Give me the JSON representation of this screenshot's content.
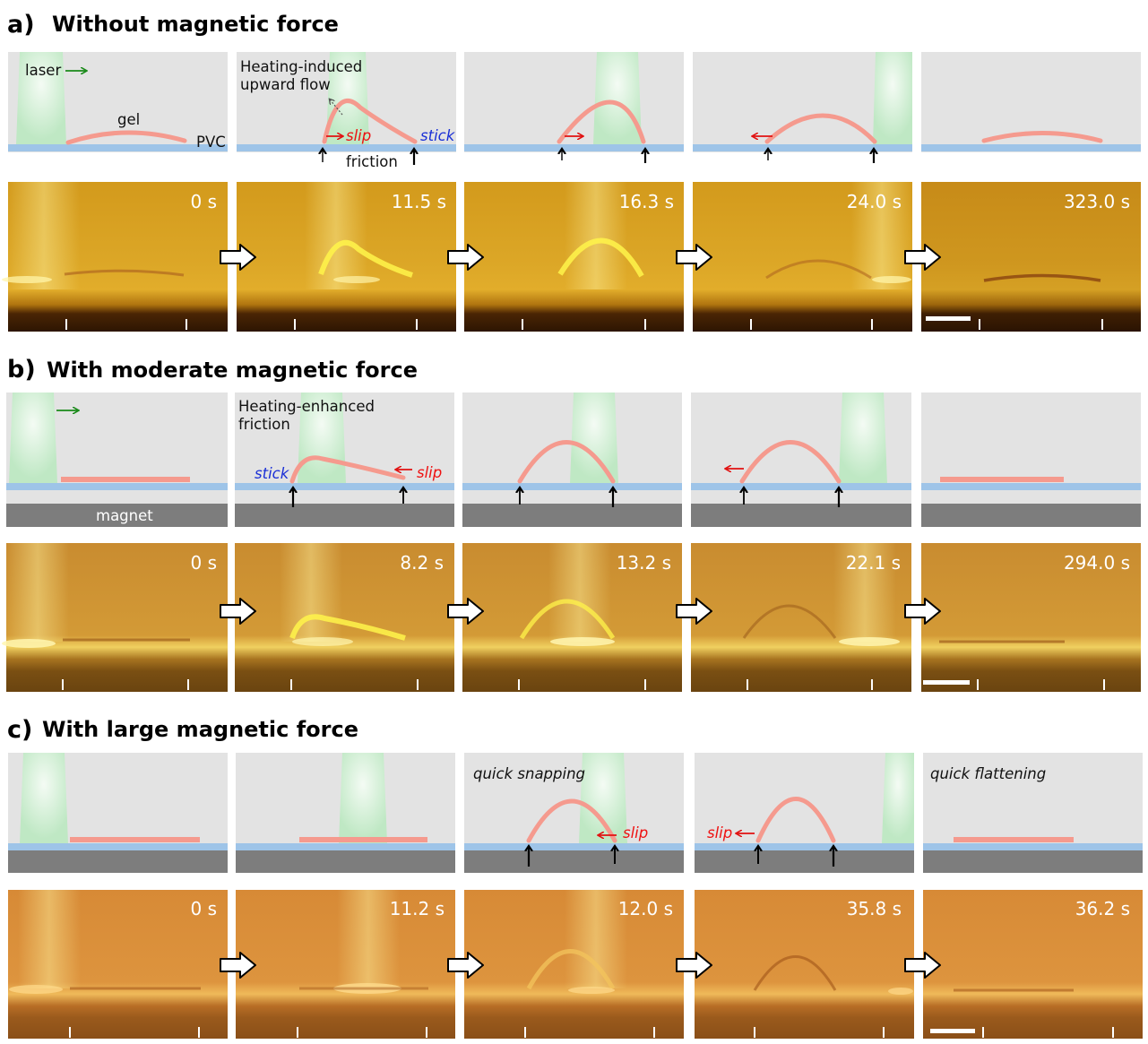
{
  "sections": [
    {
      "letter": "a)",
      "title": "Without magnetic force",
      "timestamps": [
        "0 s",
        "11.5 s",
        "16.3 s",
        "24.0 s",
        "323.0 s"
      ]
    },
    {
      "letter": "b)",
      "title": "With moderate magnetic force",
      "timestamps": [
        "0 s",
        "8.2 s",
        "13.2 s",
        "22.1 s",
        "294.0 s"
      ]
    },
    {
      "letter": "c)",
      "title": "With large magnetic force",
      "timestamps": [
        "0 s",
        "11.2 s",
        "12.0 s",
        "35.8 s",
        "36.2 s"
      ]
    }
  ],
  "labels": {
    "laser": "laser",
    "gel": "gel",
    "pvc": "PVC",
    "heating_induced_1": "Heating-induced",
    "heating_induced_2": "upward flow",
    "slip": "slip",
    "stick": "stick",
    "friction": "friction",
    "heating_enhanced_1": "Heating-enhanced",
    "heating_enhanced_2": "friction",
    "magnet": "magnet",
    "quick_snapping": "quick snapping",
    "quick_flattening": "quick flattening"
  },
  "colors": {
    "schematic_bg": "#e3e3e3",
    "laser_beam": "#bfe8c4",
    "gel": "#f59a8e",
    "pvc": "#9ec4e8",
    "magnet": "#7d7d7d",
    "slip_arrow": "#e11111",
    "laser_arrow": "#1a8a1a"
  }
}
